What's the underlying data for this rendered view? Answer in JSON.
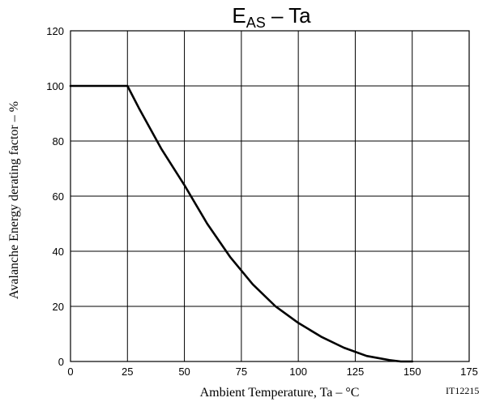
{
  "chart_data": {
    "type": "line",
    "title": {
      "main": "E",
      "subscript": "AS",
      "suffix": " – Ta"
    },
    "xlabel": "Ambient Temperature, Ta  –  °C",
    "ylabel": "Avalanche Energy derating factor  –  %",
    "xlim": [
      0,
      175
    ],
    "ylim": [
      0,
      120
    ],
    "xticks": [
      "0",
      "25",
      "50",
      "75",
      "100",
      "125",
      "150",
      "175"
    ],
    "yticks": [
      "0",
      "20",
      "40",
      "60",
      "80",
      "100",
      "120"
    ],
    "grid": true,
    "series": [
      {
        "x": [
          0,
          25,
          30,
          40,
          50,
          60,
          70,
          80,
          90,
          100,
          110,
          120,
          130,
          140,
          145,
          150
        ],
        "y": [
          100,
          100,
          92,
          77,
          64,
          50,
          38,
          28,
          20,
          14,
          9,
          5,
          2,
          0.5,
          0,
          0
        ]
      }
    ],
    "doc_code": "IT12215"
  }
}
